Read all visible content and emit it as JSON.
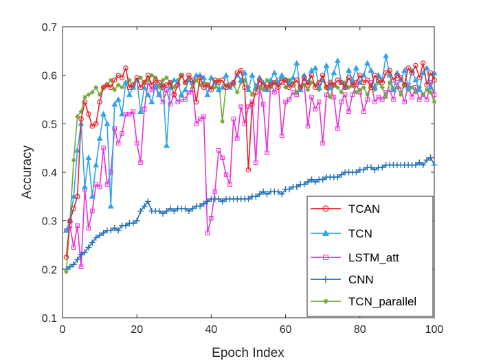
{
  "chart_data": {
    "type": "line",
    "title": "",
    "xlabel": "Epoch Index",
    "ylabel": "Accuracy",
    "xlim": [
      0,
      100
    ],
    "ylim": [
      0.1,
      0.7
    ],
    "xticks": [
      0,
      20,
      40,
      60,
      80,
      100
    ],
    "xtick_labels": [
      "0",
      "20",
      "40",
      "60",
      "80",
      "100"
    ],
    "yticks": [
      0.1,
      0.2,
      0.3,
      0.4,
      0.5,
      0.6,
      0.7
    ],
    "ytick_labels": [
      "0.1",
      "0.2",
      "0.3",
      "0.4",
      "0.5",
      "0.6",
      "0.7"
    ],
    "grid": false,
    "legend_position": "bottom-right",
    "x": [
      1,
      2,
      3,
      4,
      5,
      6,
      7,
      8,
      9,
      10,
      11,
      12,
      13,
      14,
      15,
      16,
      17,
      18,
      19,
      20,
      21,
      22,
      23,
      24,
      25,
      26,
      27,
      28,
      29,
      30,
      31,
      32,
      33,
      34,
      35,
      36,
      37,
      38,
      39,
      40,
      41,
      42,
      43,
      44,
      45,
      46,
      47,
      48,
      49,
      50,
      51,
      52,
      53,
      54,
      55,
      56,
      57,
      58,
      59,
      60,
      61,
      62,
      63,
      64,
      65,
      66,
      67,
      68,
      69,
      70,
      71,
      72,
      73,
      74,
      75,
      76,
      77,
      78,
      79,
      80,
      81,
      82,
      83,
      84,
      85,
      86,
      87,
      88,
      89,
      90,
      91,
      92,
      93,
      94,
      95,
      96,
      97,
      98,
      99,
      100
    ],
    "series": [
      {
        "name": "TCAN",
        "color": "#e8202a",
        "marker": "circle",
        "values": [
          0.225,
          0.3,
          0.325,
          0.35,
          0.51,
          0.545,
          0.52,
          0.495,
          0.5,
          0.545,
          0.575,
          0.58,
          0.575,
          0.59,
          0.6,
          0.595,
          0.615,
          0.575,
          0.58,
          0.595,
          0.575,
          0.585,
          0.6,
          0.58,
          0.59,
          0.585,
          0.575,
          0.58,
          0.585,
          0.56,
          0.58,
          0.6,
          0.585,
          0.6,
          0.59,
          0.545,
          0.595,
          0.575,
          0.58,
          0.57,
          0.59,
          0.585,
          0.59,
          0.575,
          0.58,
          0.585,
          0.605,
          0.61,
          0.575,
          0.405,
          0.54,
          0.565,
          0.59,
          0.58,
          0.575,
          0.58,
          0.585,
          0.575,
          0.585,
          0.59,
          0.575,
          0.58,
          0.59,
          0.575,
          0.595,
          0.58,
          0.6,
          0.575,
          0.585,
          0.6,
          0.575,
          0.585,
          0.58,
          0.59,
          0.585,
          0.575,
          0.595,
          0.58,
          0.585,
          0.6,
          0.585,
          0.59,
          0.575,
          0.6,
          0.59,
          0.585,
          0.605,
          0.61,
          0.59,
          0.6,
          0.595,
          0.58,
          0.615,
          0.605,
          0.62,
          0.595,
          0.625,
          0.58,
          0.605,
          0.59
        ]
      },
      {
        "name": "TCN",
        "color": "#2fa3e8",
        "marker": "triangle",
        "values": [
          0.28,
          0.3,
          0.35,
          0.445,
          0.5,
          0.37,
          0.43,
          0.35,
          0.415,
          0.47,
          0.52,
          0.5,
          0.33,
          0.54,
          0.55,
          0.52,
          0.585,
          0.56,
          0.575,
          0.59,
          0.525,
          0.575,
          0.56,
          0.545,
          0.58,
          0.56,
          0.58,
          0.455,
          0.575,
          0.59,
          0.585,
          0.56,
          0.57,
          0.59,
          0.585,
          0.6,
          0.6,
          0.595,
          0.56,
          0.595,
          0.585,
          0.57,
          0.575,
          0.6,
          0.575,
          0.585,
          0.6,
          0.59,
          0.605,
          0.57,
          0.6,
          0.575,
          0.595,
          0.585,
          0.57,
          0.59,
          0.605,
          0.585,
          0.6,
          0.59,
          0.585,
          0.595,
          0.625,
          0.57,
          0.6,
          0.585,
          0.61,
          0.615,
          0.575,
          0.59,
          0.62,
          0.575,
          0.605,
          0.63,
          0.585,
          0.575,
          0.61,
          0.59,
          0.615,
          0.585,
          0.6,
          0.625,
          0.61,
          0.575,
          0.6,
          0.59,
          0.64,
          0.6,
          0.57,
          0.605,
          0.59,
          0.61,
          0.575,
          0.61,
          0.59,
          0.57,
          0.605,
          0.615,
          0.575,
          0.605
        ]
      },
      {
        "name": "LSTM_att",
        "color": "#e631d6",
        "marker": "square",
        "values": [
          0.28,
          0.29,
          0.245,
          0.29,
          0.205,
          0.365,
          0.285,
          0.32,
          0.375,
          0.37,
          0.45,
          0.375,
          0.4,
          0.49,
          0.46,
          0.48,
          0.52,
          0.52,
          0.525,
          0.46,
          0.42,
          0.53,
          0.585,
          0.57,
          0.575,
          0.56,
          0.545,
          0.57,
          0.54,
          0.56,
          0.545,
          0.55,
          0.55,
          0.565,
          0.57,
          0.5,
          0.51,
          0.515,
          0.275,
          0.305,
          0.36,
          0.445,
          0.43,
          0.395,
          0.375,
          0.51,
          0.47,
          0.535,
          0.5,
          0.535,
          0.545,
          0.42,
          0.575,
          0.54,
          0.44,
          0.585,
          0.565,
          0.59,
          0.475,
          0.545,
          0.55,
          0.565,
          0.56,
          0.575,
          0.585,
          0.495,
          0.555,
          0.53,
          0.545,
          0.46,
          0.56,
          0.575,
          0.555,
          0.49,
          0.545,
          0.56,
          0.525,
          0.56,
          0.58,
          0.565,
          0.525,
          0.55,
          0.585,
          0.545,
          0.555,
          0.55,
          0.565,
          0.57,
          0.55,
          0.585,
          0.57,
          0.545,
          0.58,
          0.555,
          0.575,
          0.55,
          0.56,
          0.55,
          0.585,
          0.56
        ]
      },
      {
        "name": "CNN",
        "color": "#1f6fb8",
        "marker": "plus",
        "values": [
          0.2,
          0.205,
          0.21,
          0.22,
          0.23,
          0.235,
          0.245,
          0.255,
          0.265,
          0.27,
          0.275,
          0.28,
          0.28,
          0.285,
          0.28,
          0.29,
          0.29,
          0.295,
          0.295,
          0.3,
          0.32,
          0.33,
          0.34,
          0.32,
          0.32,
          0.32,
          0.315,
          0.32,
          0.325,
          0.32,
          0.325,
          0.325,
          0.325,
          0.32,
          0.325,
          0.33,
          0.33,
          0.335,
          0.34,
          0.345,
          0.345,
          0.345,
          0.34,
          0.345,
          0.345,
          0.345,
          0.345,
          0.345,
          0.345,
          0.345,
          0.35,
          0.35,
          0.355,
          0.36,
          0.355,
          0.36,
          0.36,
          0.36,
          0.355,
          0.365,
          0.365,
          0.37,
          0.37,
          0.375,
          0.375,
          0.38,
          0.385,
          0.38,
          0.385,
          0.385,
          0.39,
          0.39,
          0.39,
          0.39,
          0.395,
          0.4,
          0.4,
          0.4,
          0.4,
          0.405,
          0.405,
          0.41,
          0.41,
          0.405,
          0.41,
          0.41,
          0.415,
          0.415,
          0.415,
          0.415,
          0.415,
          0.415,
          0.415,
          0.415,
          0.415,
          0.42,
          0.415,
          0.425,
          0.43,
          0.415
        ]
      },
      {
        "name": "TCN_parallel",
        "color": "#6fa83a",
        "marker": "asterisk",
        "values": [
          0.195,
          0.3,
          0.425,
          0.515,
          0.525,
          0.555,
          0.56,
          0.565,
          0.575,
          0.56,
          0.575,
          0.58,
          0.59,
          0.57,
          0.58,
          0.575,
          0.585,
          0.59,
          0.575,
          0.59,
          0.595,
          0.585,
          0.59,
          0.6,
          0.595,
          0.575,
          0.59,
          0.595,
          0.585,
          0.575,
          0.59,
          0.6,
          0.585,
          0.59,
          0.575,
          0.59,
          0.58,
          0.585,
          0.58,
          0.575,
          0.575,
          0.59,
          0.505,
          0.58,
          0.575,
          0.58,
          0.565,
          0.585,
          0.59,
          0.575,
          0.56,
          0.58,
          0.575,
          0.57,
          0.59,
          0.575,
          0.585,
          0.58,
          0.595,
          0.575,
          0.59,
          0.585,
          0.565,
          0.575,
          0.58,
          0.57,
          0.585,
          0.58,
          0.57,
          0.59,
          0.575,
          0.555,
          0.58,
          0.575,
          0.565,
          0.585,
          0.575,
          0.58,
          0.565,
          0.57,
          0.575,
          0.56,
          0.58,
          0.57,
          0.585,
          0.575,
          0.555,
          0.585,
          0.57,
          0.575,
          0.56,
          0.58,
          0.57,
          0.575,
          0.565,
          0.575,
          0.56,
          0.57,
          0.565,
          0.545
        ]
      }
    ]
  }
}
